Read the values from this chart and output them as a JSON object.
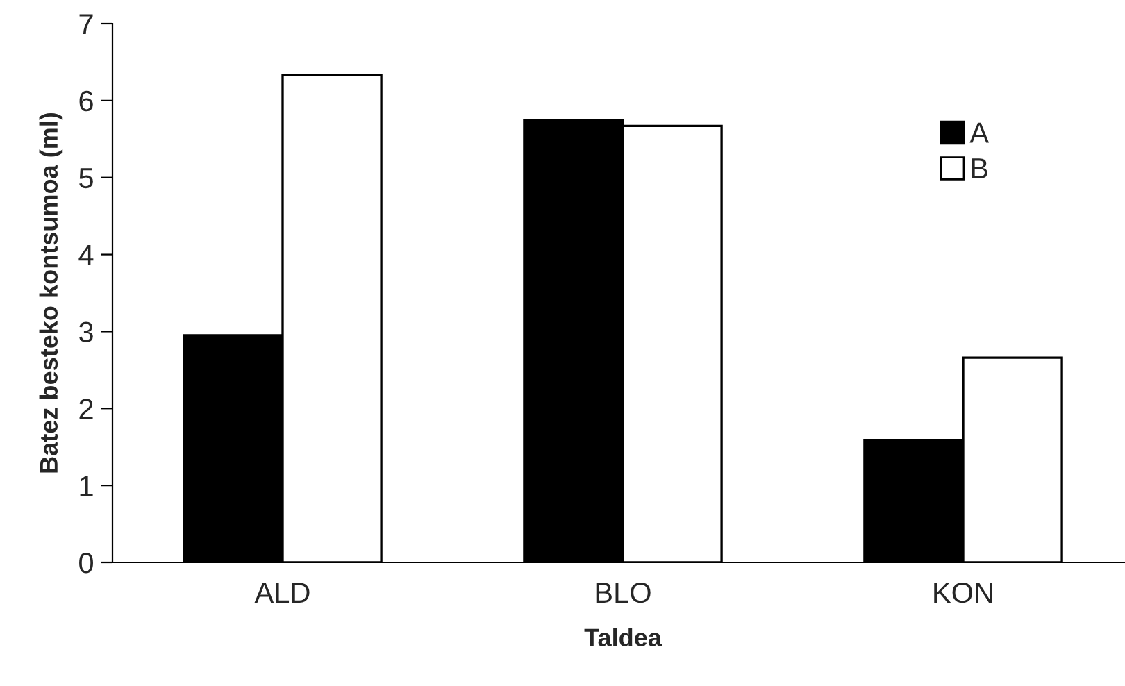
{
  "chart_data": {
    "type": "bar",
    "xlabel": "Taldea",
    "ylabel": "Batez besteko kontsumoa (ml)",
    "categories": [
      "ALD",
      "BLO",
      "KON"
    ],
    "series": [
      {
        "name": "A",
        "color": "#000000",
        "values": [
          2.95,
          5.75,
          1.59
        ]
      },
      {
        "name": "B",
        "color": "#ffffff",
        "values": [
          6.33,
          5.67,
          2.66
        ]
      }
    ],
    "ylim": [
      0,
      7
    ],
    "yticks": [
      0,
      1,
      2,
      3,
      4,
      5,
      6,
      7
    ],
    "grid": false,
    "legend": "top right"
  }
}
